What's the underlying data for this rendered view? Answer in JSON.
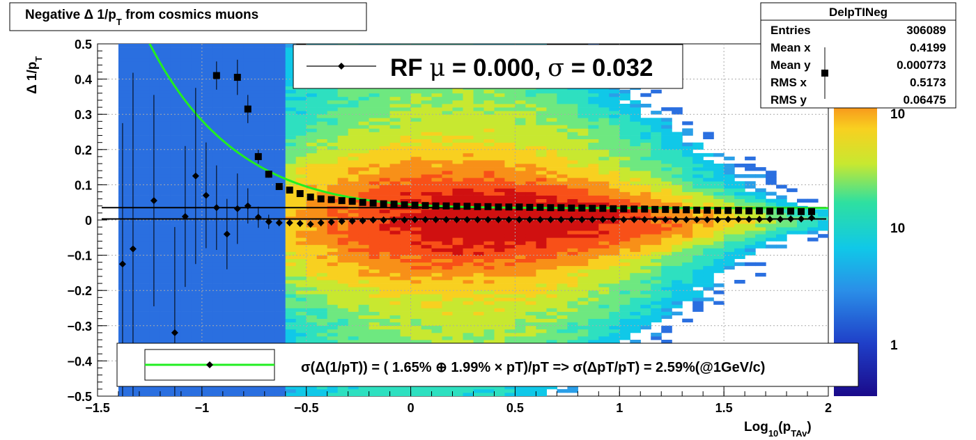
{
  "title": {
    "prefix": "Negative",
    "delta": "Δ",
    "text_a": " 1/p",
    "sub": "T",
    "text_b": " from cosmics muons"
  },
  "stats": {
    "name": "DelpTINeg",
    "rows": [
      {
        "label": "Entries",
        "value": "306089"
      },
      {
        "label": "Mean x",
        "value": "0.4199"
      },
      {
        "label": "Mean y",
        "value": "0.000773"
      },
      {
        "label": "RMS x",
        "value": "0.5173"
      },
      {
        "label": "RMS y",
        "value": "0.06475"
      }
    ]
  },
  "fit_label": {
    "rf": "RF",
    "mu": "μ",
    "eq1": " =  0.000, ",
    "sigma": "σ",
    "eq2": " =   0.032"
  },
  "legend_text": "σ(Δ(1/pT)) = ( 1.65% ⊕  1.99% × pT)/pT => σ(ΔpT/pT) =  2.59%(@1GeV/c)",
  "colorbar_labels": [
    "10",
    "10",
    "1"
  ],
  "colors": {
    "fit_curve": "#22ee22",
    "markers": "#000000",
    "grid": "#aaaaaa"
  },
  "chart_data": {
    "type": "heatmap",
    "xlabel": {
      "main": "Log",
      "sub1": "10",
      "mid": "(p",
      "sub2": "TAv",
      "end": ")"
    },
    "ylabel": {
      "main": "Δ 1/p",
      "sub": "T"
    },
    "xlim": [
      -1.5,
      2.0
    ],
    "ylim": [
      -0.5,
      0.5
    ],
    "x_ticks": [
      -1.5,
      -1,
      -0.5,
      0,
      0.5,
      1,
      1.5,
      2
    ],
    "x_tick_labels": [
      "−1.5",
      "−1",
      "−0.5",
      "0",
      "0.5",
      "1",
      "1.5",
      "2"
    ],
    "y_ticks": [
      -0.5,
      -0.4,
      -0.3,
      -0.2,
      -0.1,
      0,
      0.1,
      0.2,
      0.3,
      0.4,
      0.5
    ],
    "y_tick_labels": [
      "−0.5",
      "−0.4",
      "−0.3",
      "−0.2",
      "−0.1",
      "0",
      "0.1",
      "0.2",
      "0.3",
      "0.4",
      "0.5"
    ],
    "grid": true,
    "colorbar": "log scale, rainbow palette",
    "series": [
      {
        "marker": "diamond",
        "x": [
          -1.38,
          -1.33,
          -1.23,
          -1.13,
          -1.08,
          -1.03,
          -0.98,
          -0.93,
          -0.88,
          -0.83,
          -0.78,
          -0.73,
          -0.68,
          -0.63,
          -0.58,
          -0.53,
          -0.48,
          -0.43,
          -0.38,
          -0.33,
          -0.28,
          -0.23,
          -0.18,
          -0.13,
          -0.08,
          -0.03,
          0.02,
          0.07,
          0.12,
          0.17,
          0.22,
          0.27,
          0.32,
          0.37,
          0.42,
          0.47,
          0.52,
          0.57,
          0.62,
          0.67,
          0.72,
          0.77,
          0.82,
          0.87,
          0.92,
          0.97,
          1.02,
          1.07,
          1.12,
          1.17,
          1.22,
          1.27,
          1.32,
          1.37,
          1.42,
          1.47,
          1.52,
          1.57,
          1.62,
          1.67,
          1.72,
          1.77,
          1.82,
          1.87,
          1.92
        ],
        "y": [
          -0.125,
          -0.082,
          0.055,
          -0.32,
          0.01,
          0.125,
          0.07,
          0.035,
          -0.04,
          0.032,
          0.04,
          0.008,
          -0.005,
          -0.008,
          -0.008,
          -0.01,
          -0.012,
          -0.008,
          -0.006,
          -0.004,
          -0.003,
          -0.002,
          0,
          0,
          0,
          0,
          0.001,
          0.001,
          0.001,
          0.001,
          0.001,
          0.001,
          0.001,
          0.001,
          0.001,
          0.001,
          0.001,
          0.001,
          0.001,
          0.001,
          0.001,
          0.001,
          0.001,
          0.001,
          0.001,
          0.001,
          0.001,
          0.001,
          0.001,
          0.001,
          0.001,
          0.001,
          0.001,
          0.001,
          0.001,
          0.001,
          0.002,
          0.002,
          0.002,
          0.002,
          0.002,
          0.002,
          0.003,
          0.003,
          0.006
        ],
        "err": [
          0.4,
          0.5,
          0.3,
          0.3,
          0.2,
          0.25,
          0.15,
          0.12,
          0.1,
          0.1,
          0.05,
          0.03,
          0.02,
          0.01,
          0.01,
          0.01,
          0.01,
          0.01,
          0.01,
          0.01,
          0.01,
          0.01,
          0.01,
          0.01,
          0.01,
          0.01,
          0.01,
          0.01,
          0.01,
          0.01,
          0.01,
          0.01,
          0.01,
          0.01,
          0.01,
          0.01,
          0.01,
          0.01,
          0.01,
          0.01,
          0.01,
          0.01,
          0.01,
          0.01,
          0.01,
          0.01,
          0.01,
          0.01,
          0.01,
          0.01,
          0.01,
          0.01,
          0.01,
          0.01,
          0.01,
          0.01,
          0.01,
          0.01,
          0.01,
          0.01,
          0.01,
          0.01,
          0.01,
          0.01,
          0.01
        ]
      },
      {
        "marker": "square",
        "x": [
          -0.93,
          -0.83,
          -0.78,
          -0.73,
          -0.68,
          -0.63,
          -0.58,
          -0.53,
          -0.48,
          -0.43,
          -0.38,
          -0.33,
          -0.28,
          -0.23,
          -0.18,
          -0.13,
          -0.08,
          -0.03,
          0.02,
          0.07,
          0.12,
          0.17,
          0.22,
          0.27,
          0.32,
          0.37,
          0.42,
          0.47,
          0.52,
          0.57,
          0.62,
          0.67,
          0.72,
          0.77,
          0.82,
          0.87,
          0.92,
          0.97,
          1.02,
          1.07,
          1.12,
          1.17,
          1.22,
          1.27,
          1.32,
          1.37,
          1.42,
          1.47,
          1.52,
          1.57,
          1.62,
          1.67,
          1.72,
          1.77,
          1.82,
          1.87,
          1.92
        ],
        "y": [
          0.41,
          0.405,
          0.315,
          0.18,
          0.13,
          0.095,
          0.085,
          0.075,
          0.065,
          0.06,
          0.058,
          0.055,
          0.053,
          0.05,
          0.048,
          0.046,
          0.045,
          0.043,
          0.042,
          0.041,
          0.04,
          0.04,
          0.039,
          0.039,
          0.038,
          0.038,
          0.037,
          0.037,
          0.037,
          0.036,
          0.036,
          0.035,
          0.035,
          0.034,
          0.034,
          0.033,
          0.033,
          0.032,
          0.032,
          0.031,
          0.031,
          0.03,
          0.03,
          0.029,
          0.029,
          0.028,
          0.028,
          0.027,
          0.027,
          0.027,
          0.026,
          0.026,
          0.025,
          0.025,
          0.025,
          0.024,
          0.024
        ],
        "err": [
          0.04,
          0.05,
          0.04,
          0.02,
          0.01,
          0.005,
          0.005,
          0.004,
          0.004,
          0.003,
          0.003,
          0.003,
          0.003,
          0.003,
          0.003,
          0.003,
          0.003,
          0.003,
          0.003,
          0.003,
          0.003,
          0.003,
          0.003,
          0.003,
          0.003,
          0.003,
          0.003,
          0.003,
          0.003,
          0.003,
          0.003,
          0.003,
          0.003,
          0.003,
          0.003,
          0.003,
          0.003,
          0.003,
          0.003,
          0.003,
          0.003,
          0.003,
          0.003,
          0.003,
          0.003,
          0.003,
          0.003,
          0.003,
          0.003,
          0.003,
          0.003,
          0.003,
          0.003,
          0.003,
          0.003,
          0.003,
          0.003
        ]
      }
    ],
    "horizontal_lines": [
      0.035,
      0.003
    ],
    "fit_function": {
      "a": 0.0165,
      "b": 0.0199,
      "x_range": [
        -1.38,
        2.0
      ]
    }
  }
}
